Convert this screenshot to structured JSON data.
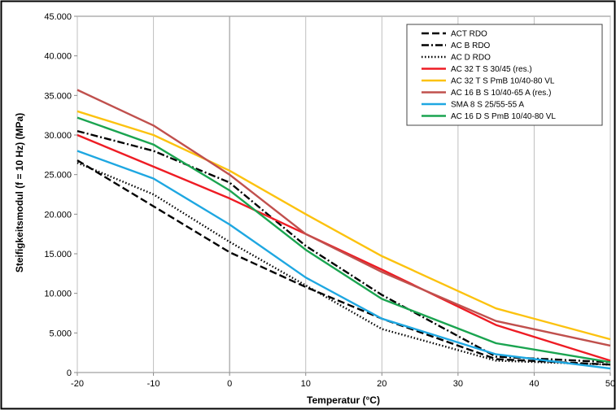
{
  "chart_data": {
    "type": "line",
    "title": "",
    "xlabel": "Temperatur (°C)",
    "ylabel": "Steifigkeitsmodul (f = 10 Hz) (MPa)",
    "xlim": [
      -20,
      50
    ],
    "ylim": [
      0,
      45000
    ],
    "x_ticks": [
      -20,
      -10,
      0,
      10,
      20,
      30,
      40,
      50
    ],
    "x_tick_labels": [
      "-20",
      "-10",
      "0",
      "10",
      "20",
      "30",
      "40",
      "50"
    ],
    "y_ticks": [
      0,
      5000,
      10000,
      15000,
      20000,
      25000,
      30000,
      35000,
      40000,
      45000
    ],
    "y_tick_labels": [
      "0",
      "5.000",
      "10.000",
      "15.000",
      "20.000",
      "25.000",
      "30.000",
      "35.000",
      "40.000",
      "45.000"
    ],
    "grid": "vertical only",
    "zero_lines": true,
    "legend_position": "top-right",
    "series": [
      {
        "name": "ACT RDO",
        "color": "#000000",
        "dash": "dash",
        "x": [
          -20,
          -10,
          0,
          10,
          20,
          35,
          50
        ],
        "y": [
          26800,
          21000,
          15200,
          10800,
          6800,
          1700,
          1000
        ]
      },
      {
        "name": "AC B RDO",
        "color": "#000000",
        "dash": "dashdot",
        "x": [
          -20,
          -10,
          0,
          10,
          20,
          35,
          50
        ],
        "y": [
          30500,
          28000,
          24000,
          16000,
          9800,
          2000,
          1300
        ]
      },
      {
        "name": "AC D RDO",
        "color": "#000000",
        "dash": "dot",
        "x": [
          -20,
          -10,
          0,
          10,
          20,
          35,
          50
        ],
        "y": [
          26500,
          22500,
          16500,
          11000,
          5500,
          1500,
          1000
        ]
      },
      {
        "name": "AC 32 T S 30/45 (res.)",
        "color": "#ee1c24",
        "dash": "solid",
        "x": [
          -20,
          -10,
          0,
          10,
          20,
          35,
          50
        ],
        "y": [
          30000,
          26000,
          22000,
          17500,
          13000,
          6000,
          1500
        ]
      },
      {
        "name": "AC 32 T S PmB 10/40-80 VL",
        "color": "#fcc20f",
        "dash": "solid",
        "x": [
          -20,
          -10,
          0,
          10,
          20,
          35,
          50
        ],
        "y": [
          33000,
          30000,
          25500,
          20000,
          14700,
          8100,
          4200
        ]
      },
      {
        "name": "AC 16 B S 10/40-65 A (res.)",
        "color": "#c0504d",
        "dash": "solid",
        "x": [
          -20,
          -10,
          0,
          10,
          20,
          35,
          50
        ],
        "y": [
          35700,
          31200,
          25000,
          17500,
          12700,
          6500,
          3400
        ]
      },
      {
        "name": "SMA 8 S 25/55-55 A",
        "color": "#1ea7e1",
        "dash": "solid",
        "x": [
          -20,
          -10,
          0,
          10,
          20,
          35,
          50
        ],
        "y": [
          28000,
          24500,
          18700,
          12000,
          6800,
          2300,
          500
        ]
      },
      {
        "name": "AC 16 D S PmB 10/40-80 VL",
        "color": "#1aa450",
        "dash": "solid",
        "x": [
          -20,
          -10,
          0,
          10,
          20,
          35,
          50
        ],
        "y": [
          32200,
          28800,
          23000,
          15500,
          9300,
          3700,
          1300
        ]
      }
    ]
  }
}
